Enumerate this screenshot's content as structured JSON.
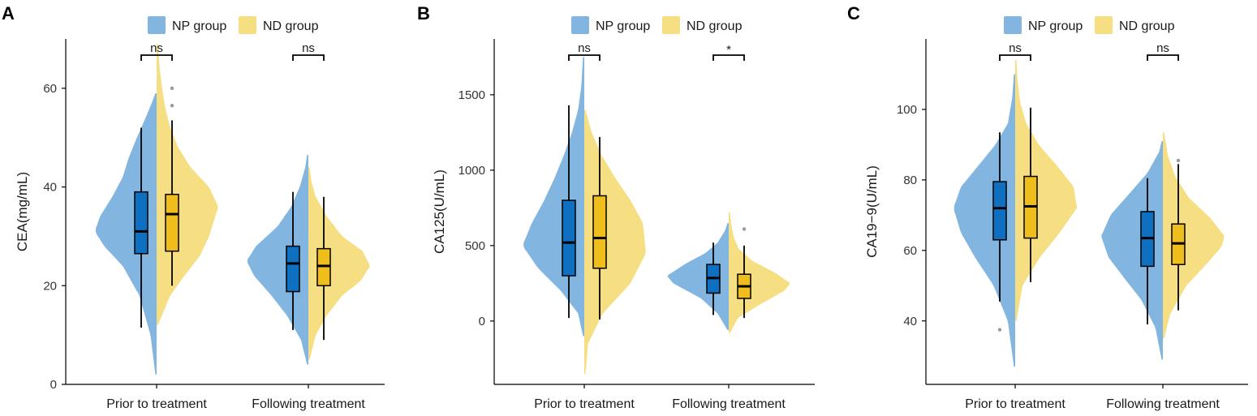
{
  "colors": {
    "np_violin": "#82b6e0",
    "nd_violin": "#f6de82",
    "np_box": "#0f6fc0",
    "nd_box": "#f0be1c",
    "outlier": "#9a9a9a",
    "axis": "#000000"
  },
  "chart_data": [
    {
      "type": "split-violin-box",
      "panel": "A",
      "ylabel": "CEA(mg/mL)",
      "ylim": [
        0,
        70
      ],
      "yticks": [
        0,
        20,
        40,
        60
      ],
      "categories": [
        "Prior to treatment",
        "Following treatment"
      ],
      "legend": [
        "NP group",
        "ND group"
      ],
      "significance": [
        "ns",
        "ns"
      ],
      "groups": [
        {
          "np": {
            "violin_min": 2,
            "violin_max": 59,
            "density": [
              [
                2,
                0.02
              ],
              [
                10,
                0.1
              ],
              [
                18,
                0.28
              ],
              [
                24,
                0.55
              ],
              [
                28,
                0.85
              ],
              [
                31,
                1.0
              ],
              [
                34,
                0.92
              ],
              [
                38,
                0.72
              ],
              [
                42,
                0.55
              ],
              [
                46,
                0.45
              ],
              [
                50,
                0.32
              ],
              [
                54,
                0.18
              ],
              [
                57,
                0.08
              ],
              [
                59,
                0.02
              ]
            ],
            "whisker_low": 11.5,
            "q1": 26.5,
            "median": 31,
            "q3": 39,
            "whisker_high": 52,
            "outliers": []
          },
          "nd": {
            "violin_min": 12,
            "violin_max": 69,
            "density": [
              [
                12,
                0.02
              ],
              [
                18,
                0.22
              ],
              [
                22,
                0.45
              ],
              [
                26,
                0.7
              ],
              [
                30,
                0.85
              ],
              [
                34,
                0.95
              ],
              [
                36,
                1.0
              ],
              [
                40,
                0.85
              ],
              [
                44,
                0.55
              ],
              [
                48,
                0.35
              ],
              [
                52,
                0.22
              ],
              [
                56,
                0.14
              ],
              [
                60,
                0.09
              ],
              [
                64,
                0.05
              ],
              [
                69,
                0.02
              ]
            ],
            "whisker_low": 20,
            "q1": 27,
            "median": 34.5,
            "q3": 38.5,
            "whisker_high": 53.5,
            "outliers": [
              56.5,
              60
            ]
          }
        },
        {
          "np": {
            "violin_min": 4,
            "violin_max": 46.5,
            "density": [
              [
                4,
                0.02
              ],
              [
                9,
                0.12
              ],
              [
                14,
                0.35
              ],
              [
                18,
                0.6
              ],
              [
                22,
                0.88
              ],
              [
                25,
                1.0
              ],
              [
                28,
                0.85
              ],
              [
                32,
                0.5
              ],
              [
                36,
                0.28
              ],
              [
                40,
                0.14
              ],
              [
                44,
                0.05
              ],
              [
                46.5,
                0.02
              ]
            ],
            "whisker_low": 11,
            "q1": 18.8,
            "median": 24.5,
            "q3": 28,
            "whisker_high": 39,
            "outliers": []
          },
          "nd": {
            "violin_min": 5,
            "violin_max": 44,
            "density": [
              [
                5,
                0.02
              ],
              [
                10,
                0.12
              ],
              [
                14,
                0.3
              ],
              [
                18,
                0.55
              ],
              [
                21,
                0.85
              ],
              [
                24,
                1.0
              ],
              [
                27,
                0.88
              ],
              [
                30,
                0.55
              ],
              [
                34,
                0.3
              ],
              [
                38,
                0.12
              ],
              [
                41,
                0.05
              ],
              [
                44,
                0.02
              ]
            ],
            "whisker_low": 9,
            "q1": 20,
            "median": 24,
            "q3": 27.5,
            "whisker_high": 38,
            "outliers": []
          }
        }
      ]
    },
    {
      "type": "split-violin-box",
      "panel": "B",
      "ylabel": "CA125(U/mL)",
      "ylim": [
        -420,
        1870
      ],
      "yticks": [
        0,
        500,
        1000,
        1500
      ],
      "categories": [
        "Prior to treatment",
        "Following treatment"
      ],
      "legend": [
        "NP group",
        "ND group"
      ],
      "significance": [
        "ns",
        "*"
      ],
      "groups": [
        {
          "np": {
            "violin_min": -100,
            "violin_max": 1750,
            "density": [
              [
                -100,
                0.02
              ],
              [
                50,
                0.1
              ],
              [
                200,
                0.38
              ],
              [
                350,
                0.75
              ],
              [
                500,
                1.0
              ],
              [
                650,
                0.85
              ],
              [
                800,
                0.65
              ],
              [
                950,
                0.48
              ],
              [
                1100,
                0.33
              ],
              [
                1250,
                0.2
              ],
              [
                1400,
                0.1
              ],
              [
                1550,
                0.05
              ],
              [
                1750,
                0.02
              ]
            ],
            "whisker_low": 20,
            "q1": 300,
            "median": 520,
            "q3": 800,
            "whisker_high": 1430,
            "outliers": []
          },
          "nd": {
            "violin_min": -350,
            "violin_max": 1400,
            "density": [
              [
                -350,
                0.02
              ],
              [
                -150,
                0.06
              ],
              [
                50,
                0.3
              ],
              [
                250,
                0.75
              ],
              [
                450,
                1.0
              ],
              [
                650,
                0.95
              ],
              [
                800,
                0.75
              ],
              [
                950,
                0.5
              ],
              [
                1100,
                0.28
              ],
              [
                1250,
                0.12
              ],
              [
                1400,
                0.02
              ]
            ],
            "whisker_low": 10,
            "q1": 350,
            "median": 550,
            "q3": 830,
            "whisker_high": 1220,
            "outliers": []
          }
        },
        {
          "np": {
            "violin_min": -60,
            "violin_max": 650,
            "density": [
              [
                -60,
                0.02
              ],
              [
                50,
                0.18
              ],
              [
                150,
                0.45
              ],
              [
                250,
                0.9
              ],
              [
                300,
                1.0
              ],
              [
                380,
                0.7
              ],
              [
                450,
                0.38
              ],
              [
                520,
                0.18
              ],
              [
                600,
                0.06
              ],
              [
                650,
                0.02
              ]
            ],
            "whisker_low": 40,
            "q1": 185,
            "median": 285,
            "q3": 375,
            "whisker_high": 520,
            "outliers": []
          },
          "nd": {
            "violin_min": -80,
            "violin_max": 720,
            "density": [
              [
                -80,
                0.02
              ],
              [
                20,
                0.15
              ],
              [
                120,
                0.55
              ],
              [
                200,
                0.9
              ],
              [
                250,
                1.0
              ],
              [
                320,
                0.75
              ],
              [
                400,
                0.38
              ],
              [
                480,
                0.16
              ],
              [
                560,
                0.08
              ],
              [
                640,
                0.04
              ],
              [
                720,
                0.02
              ]
            ],
            "whisker_low": 20,
            "q1": 150,
            "median": 230,
            "q3": 310,
            "whisker_high": 500,
            "outliers": [
              610
            ]
          }
        }
      ]
    },
    {
      "type": "split-violin-box",
      "panel": "C",
      "ylabel": "CA19−9(U/mL)",
      "ylim": [
        22,
        120
      ],
      "yticks": [
        40,
        60,
        80,
        100
      ],
      "categories": [
        "Prior to treatment",
        "Following treatment"
      ],
      "legend": [
        "NP group",
        "ND group"
      ],
      "significance": [
        "ns",
        "ns"
      ],
      "groups": [
        {
          "np": {
            "violin_min": 27,
            "violin_max": 110,
            "density": [
              [
                27,
                0.02
              ],
              [
                40,
                0.12
              ],
              [
                50,
                0.35
              ],
              [
                58,
                0.65
              ],
              [
                65,
                0.88
              ],
              [
                72,
                1.0
              ],
              [
                78,
                0.88
              ],
              [
                84,
                0.6
              ],
              [
                90,
                0.32
              ],
              [
                96,
                0.12
              ],
              [
                103,
                0.05
              ],
              [
                110,
                0.02
              ]
            ],
            "whisker_low": 45.5,
            "q1": 63,
            "median": 72,
            "q3": 79.5,
            "whisker_high": 93.5,
            "outliers": [
              37.5
            ]
          },
          "nd": {
            "violin_min": 40,
            "violin_max": 114,
            "density": [
              [
                40,
                0.02
              ],
              [
                50,
                0.12
              ],
              [
                58,
                0.4
              ],
              [
                65,
                0.72
              ],
              [
                72,
                1.0
              ],
              [
                78,
                0.95
              ],
              [
                84,
                0.68
              ],
              [
                90,
                0.38
              ],
              [
                96,
                0.18
              ],
              [
                102,
                0.08
              ],
              [
                108,
                0.04
              ],
              [
                114,
                0.02
              ]
            ],
            "whisker_low": 51,
            "q1": 63.5,
            "median": 72.5,
            "q3": 81,
            "whisker_high": 100.5,
            "outliers": []
          }
        },
        {
          "np": {
            "violin_min": 29,
            "violin_max": 91,
            "density": [
              [
                29,
                0.02
              ],
              [
                38,
                0.12
              ],
              [
                46,
                0.35
              ],
              [
                52,
                0.62
              ],
              [
                58,
                0.88
              ],
              [
                64,
                1.0
              ],
              [
                70,
                0.85
              ],
              [
                76,
                0.55
              ],
              [
                82,
                0.25
              ],
              [
                88,
                0.06
              ],
              [
                91,
                0.02
              ]
            ],
            "whisker_low": 39,
            "q1": 55.5,
            "median": 63.5,
            "q3": 71,
            "whisker_high": 80.5,
            "outliers": []
          },
          "nd": {
            "violin_min": 35,
            "violin_max": 93.5,
            "density": [
              [
                35,
                0.02
              ],
              [
                42,
                0.12
              ],
              [
                50,
                0.38
              ],
              [
                56,
                0.7
              ],
              [
                61,
                0.95
              ],
              [
                64,
                1.0
              ],
              [
                69,
                0.78
              ],
              [
                75,
                0.42
              ],
              [
                81,
                0.2
              ],
              [
                87,
                0.08
              ],
              [
                93.5,
                0.02
              ]
            ],
            "whisker_low": 43,
            "q1": 56,
            "median": 62,
            "q3": 67.5,
            "whisker_high": 84.5,
            "outliers": [
              85.5
            ]
          }
        }
      ]
    }
  ]
}
